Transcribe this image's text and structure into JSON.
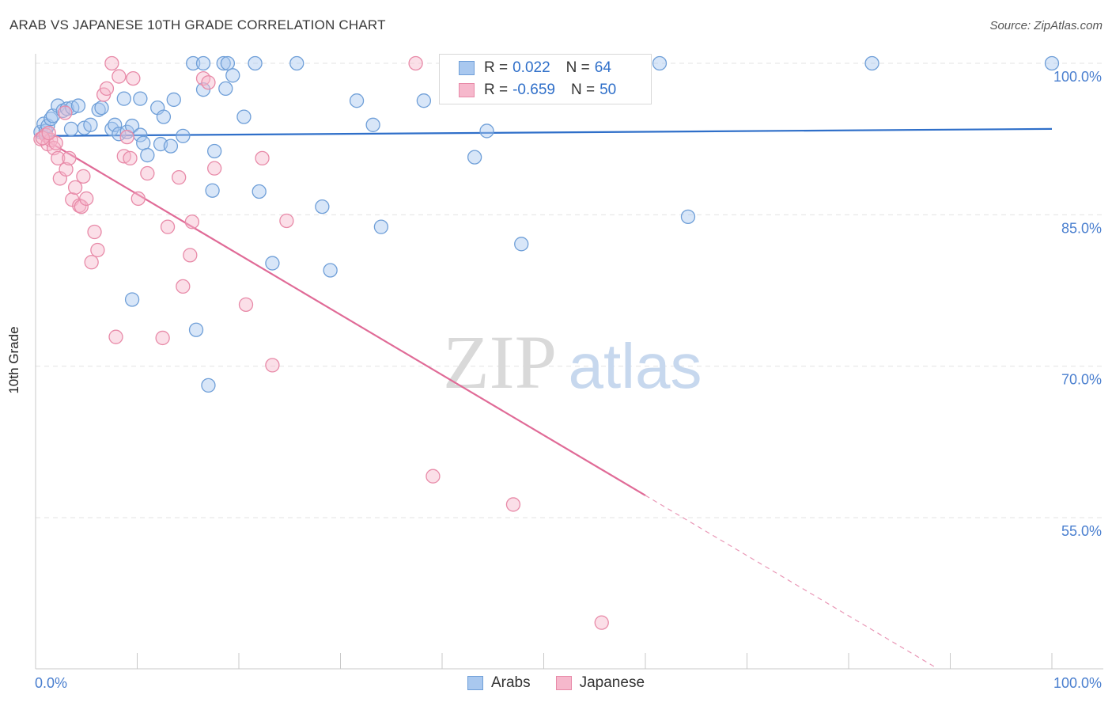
{
  "title": "ARAB VS JAPANESE 10TH GRADE CORRELATION CHART",
  "source": "Source: ZipAtlas.com",
  "watermark": {
    "zip": "ZIP",
    "atlas": "atlas"
  },
  "legend": {
    "r_label": "R =",
    "n_label": "N =",
    "arabs": {
      "r": "0.022",
      "n": "64"
    },
    "japanese": {
      "r": "-0.659",
      "n": "50"
    }
  },
  "colors": {
    "arabs_fill": "#a9c8ef",
    "arabs_stroke": "#6f9fd8",
    "arabs_line": "#2f6fc9",
    "japanese_fill": "#f6b8cc",
    "japanese_stroke": "#e88aa8",
    "japanese_line": "#e06b97",
    "tick_label": "#4a7fcf",
    "grid": "#e3e3e3"
  },
  "chart_data": {
    "type": "scatter",
    "title": "ARAB VS JAPANESE 10TH GRADE CORRELATION CHART",
    "xlabel": "",
    "ylabel": "10th Grade",
    "xlim": [
      0,
      100
    ],
    "ylim": [
      40,
      100.5
    ],
    "x_tick_labels": [
      "0.0%",
      "100.0%"
    ],
    "y_ticks": [
      55,
      70,
      85,
      100
    ],
    "y_tick_labels": [
      "55.0%",
      "70.0%",
      "85.0%",
      "100.0%"
    ],
    "grid": "horizontal dashed",
    "legend_position": "top-center",
    "series": [
      {
        "name": "Arabs",
        "r": 0.022,
        "n": 64,
        "trend": {
          "x": [
            0,
            100
          ],
          "y": [
            92.8,
            93.5
          ]
        },
        "points": [
          [
            0.5,
            93.2
          ],
          [
            0.8,
            94.0
          ],
          [
            1.0,
            93.3
          ],
          [
            1.2,
            93.8
          ],
          [
            1.5,
            94.5
          ],
          [
            1.7,
            94.8
          ],
          [
            2.2,
            95.8
          ],
          [
            2.7,
            95.3
          ],
          [
            3.1,
            95.5
          ],
          [
            3.5,
            93.5
          ],
          [
            3.6,
            95.6
          ],
          [
            4.2,
            95.8
          ],
          [
            4.8,
            93.6
          ],
          [
            5.4,
            93.9
          ],
          [
            6.2,
            95.4
          ],
          [
            6.5,
            95.6
          ],
          [
            7.5,
            93.5
          ],
          [
            7.8,
            93.9
          ],
          [
            8.2,
            93.0
          ],
          [
            8.7,
            96.5
          ],
          [
            9.0,
            93.2
          ],
          [
            9.5,
            93.8
          ],
          [
            10.3,
            92.9
          ],
          [
            10.6,
            92.1
          ],
          [
            10.3,
            96.5
          ],
          [
            11.0,
            90.9
          ],
          [
            12.0,
            95.6
          ],
          [
            12.3,
            92.0
          ],
          [
            12.6,
            94.7
          ],
          [
            13.3,
            91.8
          ],
          [
            13.6,
            96.4
          ],
          [
            14.5,
            92.8
          ],
          [
            15.5,
            100.0
          ],
          [
            15.8,
            73.6
          ],
          [
            16.5,
            97.4
          ],
          [
            17.0,
            68.1
          ],
          [
            17.4,
            87.4
          ],
          [
            17.6,
            91.3
          ],
          [
            16.5,
            100.0
          ],
          [
            18.7,
            97.5
          ],
          [
            18.5,
            100.0
          ],
          [
            18.9,
            100.0
          ],
          [
            19.4,
            98.8
          ],
          [
            20.5,
            94.7
          ],
          [
            21.6,
            100.0
          ],
          [
            22.0,
            87.3
          ],
          [
            23.3,
            80.2
          ],
          [
            25.7,
            100.0
          ],
          [
            28.2,
            85.8
          ],
          [
            29.0,
            79.5
          ],
          [
            31.6,
            96.3
          ],
          [
            33.2,
            93.9
          ],
          [
            34.0,
            83.8
          ],
          [
            38.2,
            96.3
          ],
          [
            43.2,
            90.7
          ],
          [
            44.4,
            93.3
          ],
          [
            47.0,
            100.0
          ],
          [
            47.8,
            82.1
          ],
          [
            51.5,
            100.0
          ],
          [
            61.4,
            100.0
          ],
          [
            64.2,
            84.8
          ],
          [
            82.3,
            100.0
          ],
          [
            100.0,
            100.0
          ],
          [
            9.5,
            76.6
          ]
        ]
      },
      {
        "name": "Japanese",
        "r": -0.659,
        "n": 50,
        "trend": {
          "x": [
            0,
            60,
            88.5
          ],
          "y": [
            93.0,
            57.2,
            40.2
          ],
          "solid_until_x": 60
        },
        "points": [
          [
            0.5,
            92.5
          ],
          [
            1.0,
            92.9
          ],
          [
            1.2,
            92.0
          ],
          [
            1.5,
            92.4
          ],
          [
            1.8,
            91.6
          ],
          [
            2.0,
            92.1
          ],
          [
            2.2,
            90.6
          ],
          [
            2.4,
            88.6
          ],
          [
            2.9,
            95.1
          ],
          [
            3.0,
            89.5
          ],
          [
            3.3,
            90.6
          ],
          [
            3.6,
            86.5
          ],
          [
            3.9,
            87.7
          ],
          [
            4.3,
            85.9
          ],
          [
            4.5,
            85.8
          ],
          [
            4.7,
            88.8
          ],
          [
            5.0,
            86.6
          ],
          [
            5.5,
            80.3
          ],
          [
            5.8,
            83.3
          ],
          [
            6.1,
            81.5
          ],
          [
            6.7,
            96.9
          ],
          [
            7.0,
            97.5
          ],
          [
            7.5,
            100.0
          ],
          [
            7.9,
            72.9
          ],
          [
            8.2,
            98.7
          ],
          [
            8.7,
            90.8
          ],
          [
            9.0,
            92.7
          ],
          [
            9.3,
            90.6
          ],
          [
            9.6,
            98.5
          ],
          [
            10.1,
            86.6
          ],
          [
            11.0,
            89.1
          ],
          [
            12.5,
            72.8
          ],
          [
            13.0,
            83.8
          ],
          [
            14.1,
            88.7
          ],
          [
            14.5,
            77.9
          ],
          [
            15.2,
            81.0
          ],
          [
            15.4,
            84.3
          ],
          [
            16.5,
            98.5
          ],
          [
            17.0,
            98.1
          ],
          [
            17.6,
            89.6
          ],
          [
            20.7,
            76.1
          ],
          [
            22.3,
            90.6
          ],
          [
            23.3,
            70.1
          ],
          [
            24.7,
            84.4
          ],
          [
            37.4,
            100.0
          ],
          [
            39.1,
            59.1
          ],
          [
            47.0,
            56.3
          ],
          [
            55.7,
            44.6
          ],
          [
            0.7,
            92.6
          ],
          [
            1.3,
            93.1
          ]
        ]
      }
    ]
  }
}
